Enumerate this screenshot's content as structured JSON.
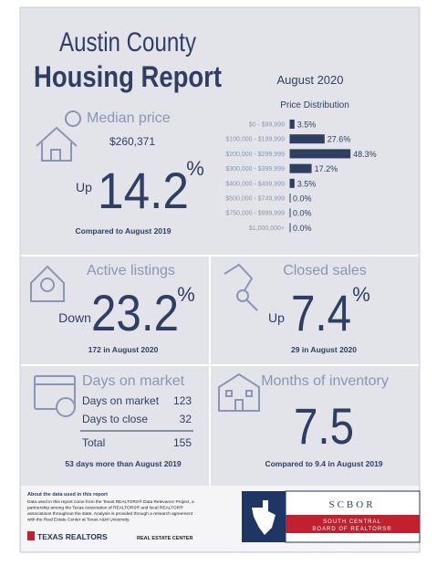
{
  "header": {
    "title_line1": "Austin County",
    "title_line2": "Housing Report",
    "date": "August 2020"
  },
  "price_distribution": {
    "title": "Price Distribution",
    "categories": [
      "$0 - $99,999",
      "$100,000 - $199,999",
      "$200,000 - $299,999",
      "$300,000 - $399,999",
      "$400,000 - $499,999",
      "$500,000 - $749,999",
      "$750,000 - $999,999",
      "$1,000,000+"
    ],
    "values": [
      3.5,
      27.6,
      48.3,
      17.2,
      3.5,
      0,
      0,
      0
    ],
    "value_labels": [
      "3.5%",
      "27.6%",
      "48.3%",
      "17.2%",
      "3.5%",
      "0.0%",
      "0.0%",
      "0.0%"
    ],
    "color": "#2f3f63"
  },
  "median_price": {
    "heading": "Median price",
    "value": "$260,371",
    "direction": "Up",
    "change": "14.2",
    "unit": "%",
    "comparison": "Compared to August 2019"
  },
  "active_listings": {
    "heading": "Active listings",
    "direction": "Down",
    "change": "23.2",
    "unit": "%",
    "note": "172 in August 2020"
  },
  "closed_sales": {
    "heading": "Closed sales",
    "direction": "Up",
    "change": "7.4",
    "unit": "%",
    "note": "29 in August 2020"
  },
  "days_on_market": {
    "heading": "Days on market",
    "rows": [
      [
        "Days on market",
        "123"
      ],
      [
        "Days to close",
        "32"
      ],
      [
        "Total",
        "155"
      ]
    ],
    "note": "53 days more than August 2019"
  },
  "months_of_inventory": {
    "heading": "Months of inventory",
    "value": "7.5",
    "note": "Compared to 9.4 in August 2019"
  },
  "footer": {
    "about_title": "About the data used in this report",
    "about_lines": [
      "Data used in this report come from the Texas REALTORS® Data Relevance Project, a",
      "partnership among the Texas Association of REALTORS® and local REALTOR®",
      "associations throughout the state. Analysis is provided through a research agreement",
      "with the Real Estate Center at Texas A&M University."
    ],
    "logo_left": "TEXAS REALTORS",
    "logo_right": "REAL ESTATE CENTER",
    "scbor_name": "SCBOR",
    "scbor_line1": "SOUTH CENTRAL",
    "scbor_line2": "BOARD OF REALTORS®"
  }
}
